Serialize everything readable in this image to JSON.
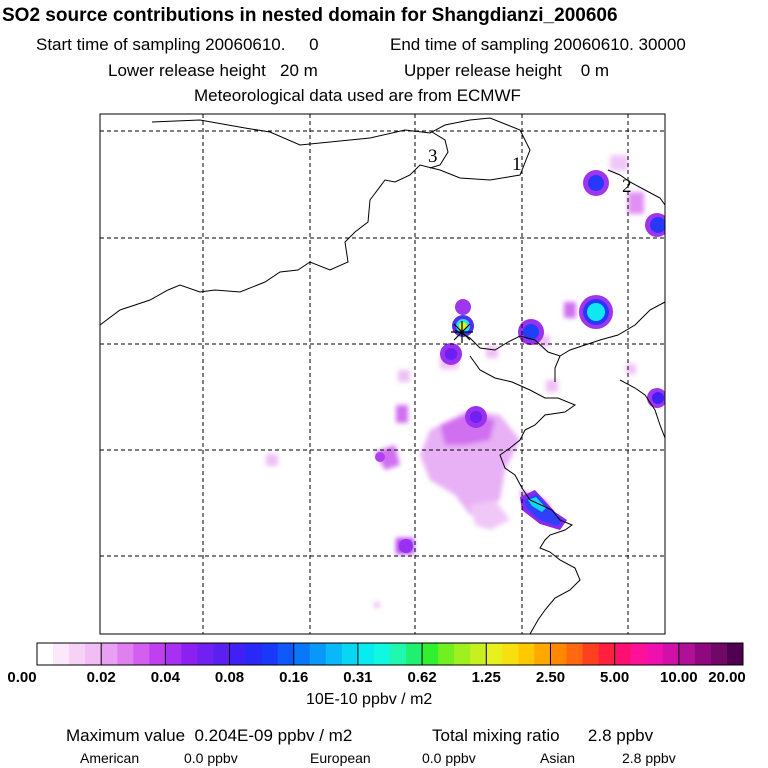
{
  "header": {
    "title": "SO2 source contributions in nested domain for Shangdianzi_200606",
    "start": "Start time of sampling 20060610.     0",
    "end": "End time of sampling 20060610. 30000",
    "lower": "Lower release height   20 m",
    "upper": "Upper release height    0 m",
    "met": "Meteorological data used are from ECMWF"
  },
  "map": {
    "labels": [
      "3",
      "1",
      "2"
    ]
  },
  "colorbar": {
    "ticks": [
      "0.00",
      "0.02",
      "0.04",
      "0.08",
      "0.16",
      "0.31",
      "0.62",
      "1.25",
      "2.50",
      "5.00",
      "10.00",
      "20.00"
    ],
    "colors": [
      "#ffffff",
      "#fbe8fb",
      "#f7d2f7",
      "#f2bdf5",
      "#e9a0f3",
      "#e080f0",
      "#d35ff0",
      "#c040f0",
      "#a830f0",
      "#8c20f0",
      "#7020f0",
      "#5a20f2",
      "#4020f5",
      "#2828f8",
      "#1838fa",
      "#1058fc",
      "#0878fb",
      "#0898fa",
      "#08b8f8",
      "#08d6f5",
      "#08ecf0",
      "#10f8e0",
      "#20f8b0",
      "#20f070",
      "#30f030",
      "#70f020",
      "#a0f020",
      "#c8f020",
      "#e8f020",
      "#f8e010",
      "#ffc800",
      "#ffa800",
      "#ff8800",
      "#ff6810",
      "#ff4020",
      "#ff2040",
      "#ff1070",
      "#ff1098",
      "#f010b0",
      "#d010a8",
      "#b01098",
      "#900880",
      "#700868",
      "#500050"
    ],
    "units": "10E-10 ppbv / m2"
  },
  "footer": {
    "max_label": "Maximum value  0.204E-09 ppbv / m2",
    "total_label": "Total mixing ratio      2.8 ppbv",
    "american_label": "American",
    "american_value": "0.0 ppbv",
    "european_label": "European",
    "european_value": "0.0 ppbv",
    "asian_label": "Asian",
    "asian_value": "2.8 ppbv"
  },
  "chart_data": {
    "type": "heatmap",
    "title": "SO2 source contributions in nested domain for Shangdianzi_200606",
    "colorbar_ticks": [
      0.0,
      0.02,
      0.04,
      0.08,
      0.16,
      0.31,
      0.62,
      1.25,
      2.5,
      5.0,
      10.0,
      20.0
    ],
    "colorbar_units": "10E-10 ppbv / m2",
    "max_value": "0.204E-09 ppbv / m2",
    "total_mixing_ratio_ppbv": 2.8,
    "regions": [
      {
        "name": "American",
        "ppbv": 0.0
      },
      {
        "name": "European",
        "ppbv": 0.0
      },
      {
        "name": "Asian",
        "ppbv": 2.8
      }
    ],
    "grid": "on"
  }
}
